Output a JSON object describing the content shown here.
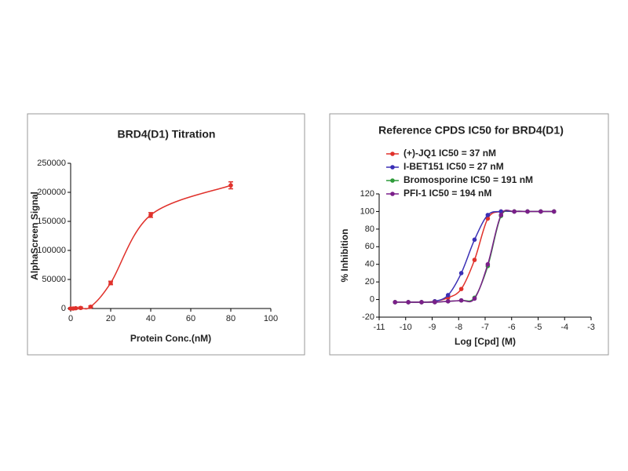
{
  "chart_data": [
    {
      "type": "line",
      "title": "BRD4(D1) Titration",
      "x_label": "Protein Conc.(nM)",
      "y_label": "AlphaScreen Signal",
      "x": [
        0,
        1.25,
        2.5,
        5,
        10,
        20,
        40,
        80
      ],
      "values": [
        0,
        0,
        500,
        1000,
        3000,
        44000,
        161000,
        212000
      ],
      "errors": [
        1500,
        1500,
        1500,
        1500,
        1500,
        3000,
        4000,
        6000
      ],
      "color": "#e0312b",
      "xlim": [
        0,
        100
      ],
      "xticks": [
        0,
        20,
        40,
        60,
        80,
        100
      ],
      "ylim": [
        0,
        250000
      ],
      "yticks": [
        0,
        50000,
        100000,
        150000,
        200000,
        250000
      ]
    },
    {
      "type": "line",
      "title": "Reference CPDS IC50 for BRD4(D1)",
      "x_label": "Log [Cpd] (M)",
      "y_label": "% Inhibition",
      "x": [
        -10.4,
        -9.9,
        -9.4,
        -8.9,
        -8.4,
        -7.9,
        -7.4,
        -6.9,
        -6.4,
        -5.9,
        -5.4,
        -4.9,
        -4.4
      ],
      "series": [
        {
          "name": "(+)-JQ1 IC50 = 37 nM",
          "color": "#e0312b",
          "values": [
            -3,
            -3,
            -3,
            -2,
            2,
            12,
            45,
            92,
            100,
            100,
            100,
            100,
            100
          ]
        },
        {
          "name": "I-BET151 IC50 = 27 nM",
          "color": "#3a2fb5",
          "values": [
            -3,
            -3,
            -3,
            -2,
            5,
            30,
            68,
            96,
            100,
            100,
            100,
            100,
            100
          ]
        },
        {
          "name": "Bromosporine IC50 = 191 nM",
          "color": "#2e9b3a",
          "values": [
            -3,
            -3,
            -3,
            -3,
            -2,
            -1,
            2,
            38,
            95,
            100,
            100,
            100,
            100
          ]
        },
        {
          "name": "PFI-1 IC50 = 194 nM",
          "color": "#7b1f8a",
          "values": [
            -3,
            -3,
            -3,
            -3,
            -2,
            -1,
            1,
            40,
            96,
            100,
            100,
            100,
            100
          ]
        }
      ],
      "xlim": [
        -11,
        -3
      ],
      "xticks": [
        -11,
        -10,
        -9,
        -8,
        -7,
        -6,
        -5,
        -4,
        -3
      ],
      "ylim": [
        -20,
        120
      ],
      "yticks": [
        -20,
        0,
        20,
        40,
        60,
        80,
        100,
        120
      ]
    }
  ]
}
